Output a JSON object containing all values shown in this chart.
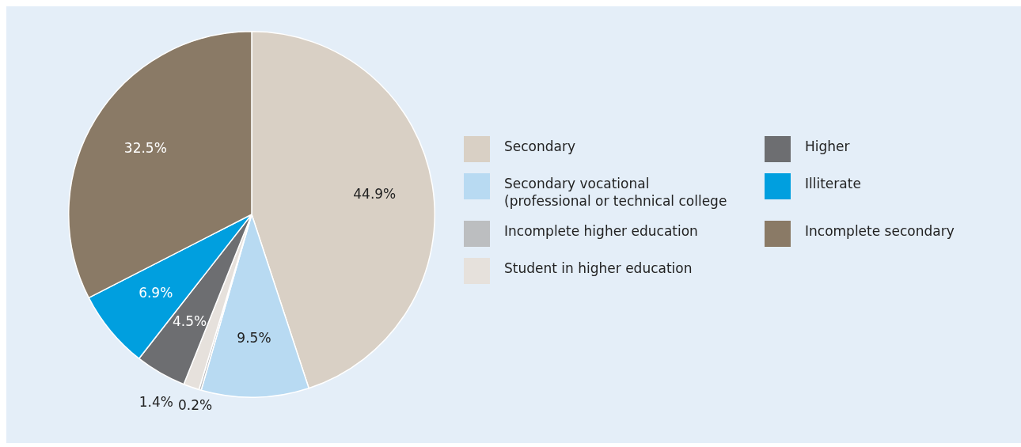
{
  "chart_data": {
    "type": "pie",
    "categories": [
      "Secondary",
      "Secondary vocational (professional or technical college",
      "Incomplete higher education",
      "Student in higher education",
      "Higher",
      "Illiterate",
      "Incomplete secondary"
    ],
    "values": [
      44.9,
      9.5,
      0.2,
      1.4,
      4.5,
      6.9,
      32.5
    ],
    "value_labels": [
      "44.9%",
      "9.5%",
      "0.2%",
      "1.4%",
      "4.5%",
      "6.9%",
      "32.5%"
    ],
    "colors": [
      "#d9d0c5",
      "#b8daf2",
      "#bcbec0",
      "#e6e1dc",
      "#6d6e71",
      "#009fdf",
      "#8a7a66"
    ],
    "legend": "right"
  }
}
